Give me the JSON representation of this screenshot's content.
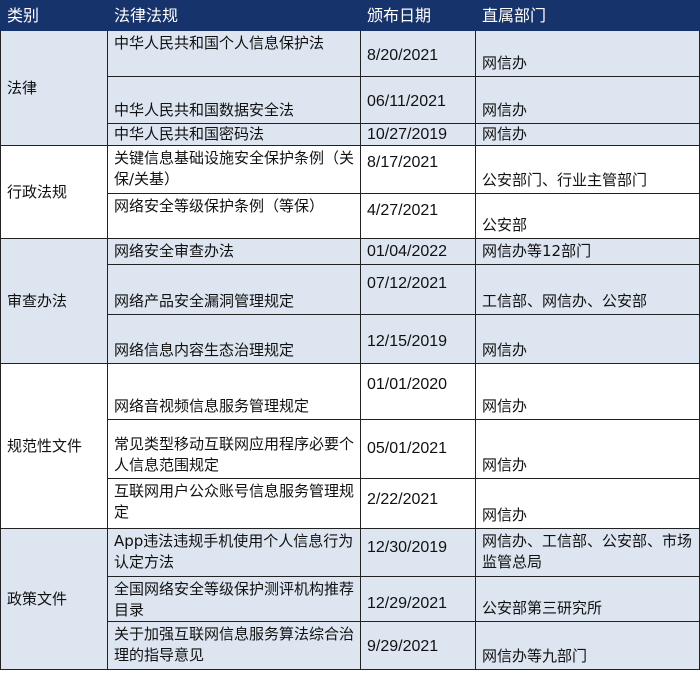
{
  "header": {
    "category": "类别",
    "law": "法律法规",
    "date": "颁布日期",
    "department": "直属部门"
  },
  "colors": {
    "header_bg": "#17336b",
    "row_blue": "#dce5f0",
    "row_white": "#ffffff"
  },
  "groups": [
    {
      "category": "法律",
      "rows": [
        {
          "law": "中华人民共和国个人信息保护法",
          "date": "8/20/2021",
          "department": "网信办"
        },
        {
          "law": "中华人民共和国数据安全法",
          "date": "06/11/2021",
          "department": "网信办"
        },
        {
          "law": "中华人民共和国密码法",
          "date": "10/27/2019",
          "department": "网信办"
        }
      ]
    },
    {
      "category": "行政法规",
      "rows": [
        {
          "law": "关键信息基础设施安全保护条例（关保/关基）",
          "date": "8/17/2021",
          "department": "公安部门、行业主管部门"
        },
        {
          "law": "网络安全等级保护条例（等保）",
          "date": "4/27/2021",
          "department": "公安部"
        }
      ]
    },
    {
      "category": "审查办法",
      "rows": [
        {
          "law": "网络安全审查办法",
          "date": "01/04/2022",
          "department": "网信办等12部门"
        },
        {
          "law": "网络产品安全漏洞管理规定",
          "date": "07/12/2021",
          "department": "工信部、网信办、公安部"
        },
        {
          "law": "网络信息内容生态治理规定",
          "date": "12/15/2019",
          "department": "网信办"
        }
      ]
    },
    {
      "category": "规范性文件",
      "rows": [
        {
          "law": "网络音视频信息服务管理规定",
          "date": "01/01/2020",
          "department": "网信办"
        },
        {
          "law": "常见类型移动互联网应用程序必要个人信息范围规定",
          "date": "05/01/2021",
          "department": "网信办"
        },
        {
          "law": "互联网用户公众账号信息服务管理规定",
          "date": "2/22/2021",
          "department": "网信办"
        }
      ]
    },
    {
      "category": "政策文件",
      "rows": [
        {
          "law": "App违法违规手机使用个人信息行为认定方法",
          "date": "12/30/2019",
          "department": "网信办、工信部、公安部、市场监管总局"
        },
        {
          "law": "全国网络安全等级保护测评机构推荐目录",
          "date": "12/29/2021",
          "department": "公安部第三研究所"
        },
        {
          "law": "关于加强互联网信息服务算法综合治理的指导意见",
          "date": "9/29/2021",
          "department": "网信办等九部门"
        }
      ]
    }
  ]
}
